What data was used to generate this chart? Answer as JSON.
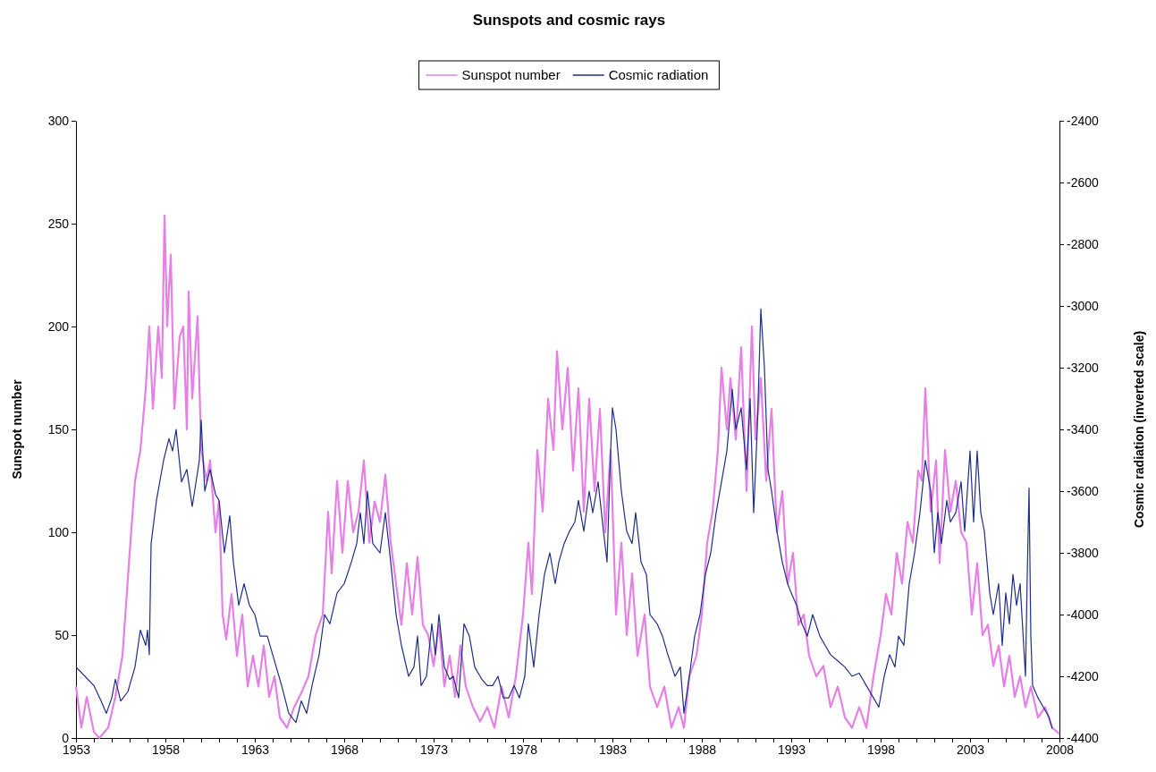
{
  "chart_data": {
    "type": "line",
    "title": "Sunspots and cosmic rays",
    "ylabel": "Sunspot number",
    "y2label": "Cosmic radiation (inverted scale)",
    "xlim": [
      1953,
      2008
    ],
    "xticks": [
      1953,
      {
        "value": 1954,
        "label": null
      },
      {
        "value": 1955,
        "label": null
      },
      {
        "value": 1956,
        "label": null
      },
      {
        "value": 1957,
        "label": null
      },
      1958,
      {
        "value": 1959,
        "label": null
      },
      {
        "value": 1960,
        "label": null
      },
      {
        "value": 1961,
        "label": null
      },
      {
        "value": 1962,
        "label": null
      },
      1963,
      {
        "value": 1964,
        "label": null
      },
      {
        "value": 1965,
        "label": null
      },
      {
        "value": 1966,
        "label": null
      },
      {
        "value": 1967,
        "label": null
      },
      1968,
      {
        "value": 1969,
        "label": null
      },
      {
        "value": 1970,
        "label": null
      },
      {
        "value": 1971,
        "label": null
      },
      {
        "value": 1972,
        "label": null
      },
      1973,
      {
        "value": 1974,
        "label": null
      },
      {
        "value": 1975,
        "label": null
      },
      {
        "value": 1976,
        "label": null
      },
      {
        "value": 1977,
        "label": null
      },
      1978,
      {
        "value": 1979,
        "label": null
      },
      {
        "value": 1980,
        "label": null
      },
      {
        "value": 1981,
        "label": null
      },
      {
        "value": 1982,
        "label": null
      },
      1983,
      {
        "value": 1984,
        "label": null
      },
      {
        "value": 1985,
        "label": null
      },
      {
        "value": 1986,
        "label": null
      },
      {
        "value": 1987,
        "label": null
      },
      1988,
      {
        "value": 1989,
        "label": null
      },
      {
        "value": 1990,
        "label": null
      },
      {
        "value": 1991,
        "label": null
      },
      {
        "value": 1992,
        "label": null
      },
      1993,
      {
        "value": 1994,
        "label": null
      },
      {
        "value": 1995,
        "label": null
      },
      {
        "value": 1996,
        "label": null
      },
      {
        "value": 1997,
        "label": null
      },
      1998,
      {
        "value": 1999,
        "label": null
      },
      {
        "value": 2000,
        "label": null
      },
      {
        "value": 2001,
        "label": null
      },
      {
        "value": 2002,
        "label": null
      },
      2003,
      {
        "value": 2004,
        "label": null
      },
      {
        "value": 2005,
        "label": null
      },
      {
        "value": 2006,
        "label": null
      },
      {
        "value": 2007,
        "label": null
      },
      2008
    ],
    "ylim": [
      0,
      300
    ],
    "yticks": [
      0,
      50,
      100,
      150,
      200,
      250,
      300
    ],
    "y2lim": [
      -4400,
      -2400
    ],
    "y2ticks": [
      -4400,
      -4200,
      -4000,
      -3800,
      -3600,
      -3400,
      -3200,
      -3000,
      -2800,
      -2600,
      -2400
    ],
    "grid": false,
    "legend": "top",
    "marker": "none",
    "line_style": "solid",
    "series": [
      {
        "name": "Sunspot number",
        "color": "#e680e6",
        "x": [
          1953.0,
          1953.3,
          1953.6,
          1954.0,
          1954.3,
          1954.8,
          1955.2,
          1955.6,
          1956.0,
          1956.3,
          1956.6,
          1956.9,
          1957.1,
          1957.3,
          1957.6,
          1957.8,
          1957.95,
          1958.1,
          1958.3,
          1958.5,
          1958.8,
          1959.0,
          1959.2,
          1959.3,
          1959.5,
          1959.8,
          1960.0,
          1960.3,
          1960.5,
          1960.8,
          1961.0,
          1961.2,
          1961.4,
          1961.7,
          1962.0,
          1962.3,
          1962.6,
          1962.9,
          1963.2,
          1963.5,
          1963.8,
          1964.1,
          1964.4,
          1964.8,
          1965.2,
          1965.6,
          1966.0,
          1966.4,
          1966.8,
          1967.1,
          1967.3,
          1967.6,
          1967.9,
          1968.2,
          1968.5,
          1968.8,
          1969.1,
          1969.4,
          1969.7,
          1970.0,
          1970.3,
          1970.6,
          1970.9,
          1971.2,
          1971.5,
          1971.8,
          1972.1,
          1972.4,
          1972.7,
          1973.0,
          1973.3,
          1973.6,
          1973.9,
          1974.2,
          1974.5,
          1974.8,
          1975.2,
          1975.6,
          1976.0,
          1976.4,
          1976.8,
          1977.2,
          1977.6,
          1978.0,
          1978.3,
          1978.5,
          1978.8,
          1979.1,
          1979.4,
          1979.7,
          1979.9,
          1980.2,
          1980.5,
          1980.8,
          1981.1,
          1981.4,
          1981.7,
          1982.0,
          1982.3,
          1982.6,
          1982.9,
          1983.2,
          1983.5,
          1983.8,
          1984.1,
          1984.4,
          1984.8,
          1985.1,
          1985.5,
          1985.9,
          1986.3,
          1986.7,
          1987.0,
          1987.3,
          1987.7,
          1988.0,
          1988.3,
          1988.6,
          1988.9,
          1989.1,
          1989.4,
          1989.6,
          1989.9,
          1990.2,
          1990.5,
          1990.8,
          1991.0,
          1991.3,
          1991.6,
          1991.9,
          1992.2,
          1992.5,
          1992.8,
          1993.1,
          1993.4,
          1993.7,
          1994.0,
          1994.4,
          1994.8,
          1995.2,
          1995.6,
          1996.0,
          1996.4,
          1996.8,
          1997.2,
          1997.6,
          1998.0,
          1998.3,
          1998.6,
          1998.9,
          1999.2,
          1999.5,
          1999.8,
          2000.1,
          2000.3,
          2000.5,
          2000.8,
          2001.1,
          2001.3,
          2001.6,
          2001.9,
          2002.2,
          2002.5,
          2002.8,
          2003.1,
          2003.4,
          2003.7,
          2004.0,
          2004.3,
          2004.6,
          2004.9,
          2005.2,
          2005.5,
          2005.8,
          2006.1,
          2006.4,
          2006.8,
          2007.2,
          2007.6,
          2008.0
        ],
        "values": [
          25,
          5,
          20,
          3,
          0,
          5,
          20,
          40,
          90,
          125,
          140,
          170,
          200,
          160,
          200,
          175,
          254,
          200,
          235,
          160,
          195,
          200,
          150,
          217,
          165,
          205,
          140,
          125,
          135,
          100,
          115,
          60,
          48,
          70,
          40,
          60,
          25,
          40,
          25,
          45,
          20,
          30,
          10,
          5,
          15,
          22,
          30,
          50,
          60,
          110,
          80,
          125,
          90,
          125,
          100,
          110,
          135,
          95,
          115,
          105,
          128,
          95,
          75,
          55,
          85,
          60,
          88,
          55,
          50,
          35,
          55,
          25,
          40,
          20,
          45,
          25,
          15,
          8,
          15,
          5,
          25,
          10,
          30,
          60,
          95,
          70,
          140,
          110,
          165,
          140,
          188,
          150,
          180,
          130,
          170,
          110,
          165,
          120,
          160,
          100,
          140,
          60,
          95,
          50,
          80,
          40,
          60,
          25,
          15,
          25,
          5,
          15,
          5,
          30,
          40,
          60,
          95,
          110,
          140,
          180,
          150,
          175,
          145,
          190,
          120,
          200,
          145,
          175,
          125,
          160,
          100,
          120,
          75,
          90,
          55,
          60,
          40,
          30,
          35,
          15,
          25,
          10,
          5,
          15,
          5,
          30,
          50,
          70,
          60,
          90,
          75,
          105,
          95,
          130,
          125,
          170,
          110,
          135,
          85,
          140,
          110,
          125,
          100,
          95,
          60,
          85,
          50,
          55,
          35,
          45,
          25,
          40,
          20,
          30,
          15,
          25,
          10,
          15,
          5,
          2
        ]
      },
      {
        "name": "Cosmic radiation",
        "color": "#1f2e8a",
        "axis": "y2",
        "x": [
          1953.0,
          1953.5,
          1954.0,
          1954.4,
          1954.7,
          1955.0,
          1955.2,
          1955.5,
          1955.9,
          1956.3,
          1956.6,
          1956.9,
          1957.0,
          1957.1,
          1957.2,
          1957.5,
          1957.9,
          1958.2,
          1958.4,
          1958.6,
          1958.9,
          1959.2,
          1959.5,
          1959.9,
          1960.0,
          1960.2,
          1960.5,
          1960.8,
          1961.0,
          1961.3,
          1961.6,
          1961.8,
          1962.1,
          1962.4,
          1962.7,
          1963.0,
          1963.3,
          1963.7,
          1964.0,
          1964.5,
          1964.9,
          1965.3,
          1965.6,
          1965.9,
          1966.2,
          1966.6,
          1966.9,
          1967.2,
          1967.6,
          1968.0,
          1968.4,
          1968.7,
          1968.9,
          1969.1,
          1969.3,
          1969.6,
          1970.0,
          1970.3,
          1970.6,
          1970.9,
          1971.2,
          1971.6,
          1971.9,
          1972.1,
          1972.3,
          1972.6,
          1972.9,
          1973.1,
          1973.3,
          1973.6,
          1973.9,
          1974.1,
          1974.4,
          1974.7,
          1975.0,
          1975.3,
          1975.7,
          1976.0,
          1976.3,
          1976.6,
          1976.9,
          1977.2,
          1977.5,
          1977.8,
          1978.1,
          1978.3,
          1978.6,
          1978.9,
          1979.2,
          1979.5,
          1979.8,
          1980.0,
          1980.3,
          1980.6,
          1980.9,
          1981.1,
          1981.4,
          1981.7,
          1981.9,
          1982.2,
          1982.5,
          1982.7,
          1982.9,
          1983.0,
          1983.2,
          1983.5,
          1983.8,
          1984.1,
          1984.3,
          1984.6,
          1984.9,
          1985.1,
          1985.5,
          1985.8,
          1986.1,
          1986.5,
          1986.8,
          1987.0,
          1987.3,
          1987.6,
          1987.9,
          1988.2,
          1988.5,
          1988.8,
          1989.1,
          1989.4,
          1989.7,
          1989.9,
          1990.2,
          1990.5,
          1990.7,
          1990.9,
          1991.1,
          1991.3,
          1991.5,
          1991.7,
          1991.9,
          1992.2,
          1992.5,
          1992.8,
          1993.0,
          1993.3,
          1993.6,
          1993.9,
          1994.2,
          1994.6,
          1994.9,
          1995.2,
          1995.6,
          1996.0,
          1996.4,
          1996.8,
          1997.2,
          1997.6,
          1997.9,
          1998.2,
          1998.5,
          1998.8,
          1999.0,
          1999.3,
          1999.6,
          1999.9,
          2000.2,
          2000.5,
          2000.8,
          2001.0,
          2001.2,
          2001.4,
          2001.7,
          2001.9,
          2002.2,
          2002.5,
          2002.7,
          2003.0,
          2003.2,
          2003.4,
          2003.6,
          2003.8,
          2004.1,
          2004.3,
          2004.6,
          2004.8,
          2005.0,
          2005.2,
          2005.4,
          2005.6,
          2005.8,
          2006.0,
          2006.1,
          2006.2,
          2006.3,
          2006.4,
          2006.5,
          2006.8,
          2007.1,
          2007.4,
          2007.6
        ],
        "values": [
          -4170,
          -4200,
          -4230,
          -4280,
          -4320,
          -4270,
          -4210,
          -4280,
          -4250,
          -4170,
          -4050,
          -4100,
          -4050,
          -4130,
          -3770,
          -3630,
          -3500,
          -3430,
          -3470,
          -3400,
          -3570,
          -3530,
          -3650,
          -3500,
          -3370,
          -3600,
          -3530,
          -3610,
          -3630,
          -3800,
          -3680,
          -3830,
          -3970,
          -3900,
          -3970,
          -4000,
          -4070,
          -4070,
          -4130,
          -4230,
          -4320,
          -4350,
          -4280,
          -4320,
          -4230,
          -4130,
          -4000,
          -4030,
          -3930,
          -3900,
          -3830,
          -3770,
          -3670,
          -3770,
          -3600,
          -3770,
          -3800,
          -3670,
          -3830,
          -4000,
          -4100,
          -4200,
          -4170,
          -4070,
          -4230,
          -4200,
          -4030,
          -4130,
          -4000,
          -4170,
          -4210,
          -4200,
          -4270,
          -4030,
          -4070,
          -4170,
          -4210,
          -4230,
          -4230,
          -4200,
          -4270,
          -4270,
          -4230,
          -4270,
          -4200,
          -4030,
          -4170,
          -4000,
          -3870,
          -3800,
          -3900,
          -3830,
          -3770,
          -3730,
          -3700,
          -3630,
          -3730,
          -3600,
          -3670,
          -3570,
          -3730,
          -3830,
          -3470,
          -3330,
          -3400,
          -3600,
          -3730,
          -3770,
          -3670,
          -3830,
          -3870,
          -4000,
          -4030,
          -4070,
          -4130,
          -4200,
          -4170,
          -4320,
          -4200,
          -4070,
          -4000,
          -3870,
          -3800,
          -3670,
          -3570,
          -3470,
          -3270,
          -3400,
          -3330,
          -3530,
          -3300,
          -3670,
          -3400,
          -3010,
          -3200,
          -3530,
          -3600,
          -3730,
          -3830,
          -3900,
          -3930,
          -3970,
          -4030,
          -4070,
          -4000,
          -4070,
          -4100,
          -4130,
          -4150,
          -4170,
          -4200,
          -4190,
          -4230,
          -4270,
          -4300,
          -4200,
          -4130,
          -4170,
          -4070,
          -4100,
          -3900,
          -3800,
          -3670,
          -3500,
          -3600,
          -3800,
          -3670,
          -3770,
          -3630,
          -3700,
          -3670,
          -3570,
          -3730,
          -3470,
          -3700,
          -3470,
          -3670,
          -3730,
          -3930,
          -4000,
          -3900,
          -4100,
          -3930,
          -4030,
          -3870,
          -3970,
          -3900,
          -4100,
          -4200,
          -3870,
          -3590,
          -4070,
          -4230,
          -4270,
          -4300,
          -4330,
          -4370
        ]
      }
    ]
  }
}
